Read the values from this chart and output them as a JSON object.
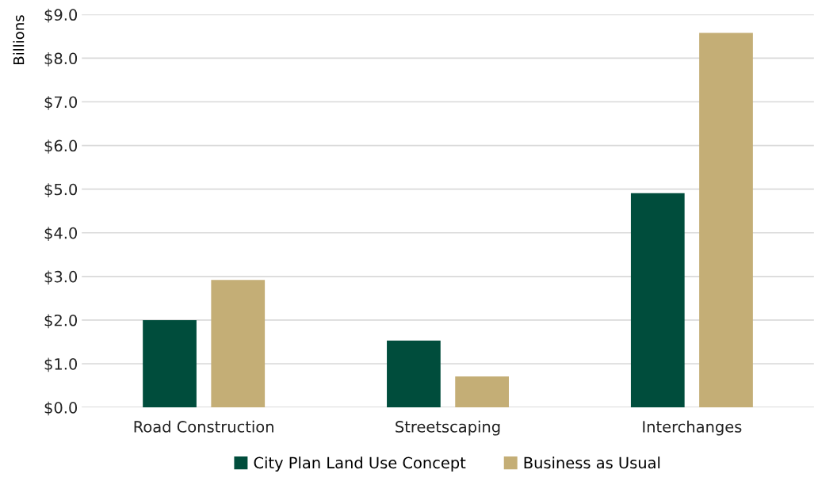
{
  "chart_data": {
    "type": "bar",
    "ylabel": "Billions",
    "categories": [
      "Road Construction",
      "Streetscaping",
      "Interchanges"
    ],
    "series": [
      {
        "name": "City Plan Land Use Concept",
        "color": "#004d3c",
        "values": [
          2.0,
          1.53,
          4.91
        ]
      },
      {
        "name": "Business as Usual",
        "color": "#c4ae76",
        "values": [
          2.92,
          0.71,
          8.58
        ]
      }
    ],
    "ylim": [
      0,
      9
    ],
    "yticks": [
      {
        "value": 0,
        "label": "$0.0"
      },
      {
        "value": 1,
        "label": "$1.0"
      },
      {
        "value": 2,
        "label": "$2.0"
      },
      {
        "value": 3,
        "label": "$3.0"
      },
      {
        "value": 4,
        "label": "$4.0"
      },
      {
        "value": 5,
        "label": "$5.0"
      },
      {
        "value": 6,
        "label": "$6.0"
      },
      {
        "value": 7,
        "label": "$7.0"
      },
      {
        "value": 8,
        "label": "$8.0"
      },
      {
        "value": 9,
        "label": "$9.0"
      }
    ],
    "grid": "y",
    "legend": "bottom"
  }
}
